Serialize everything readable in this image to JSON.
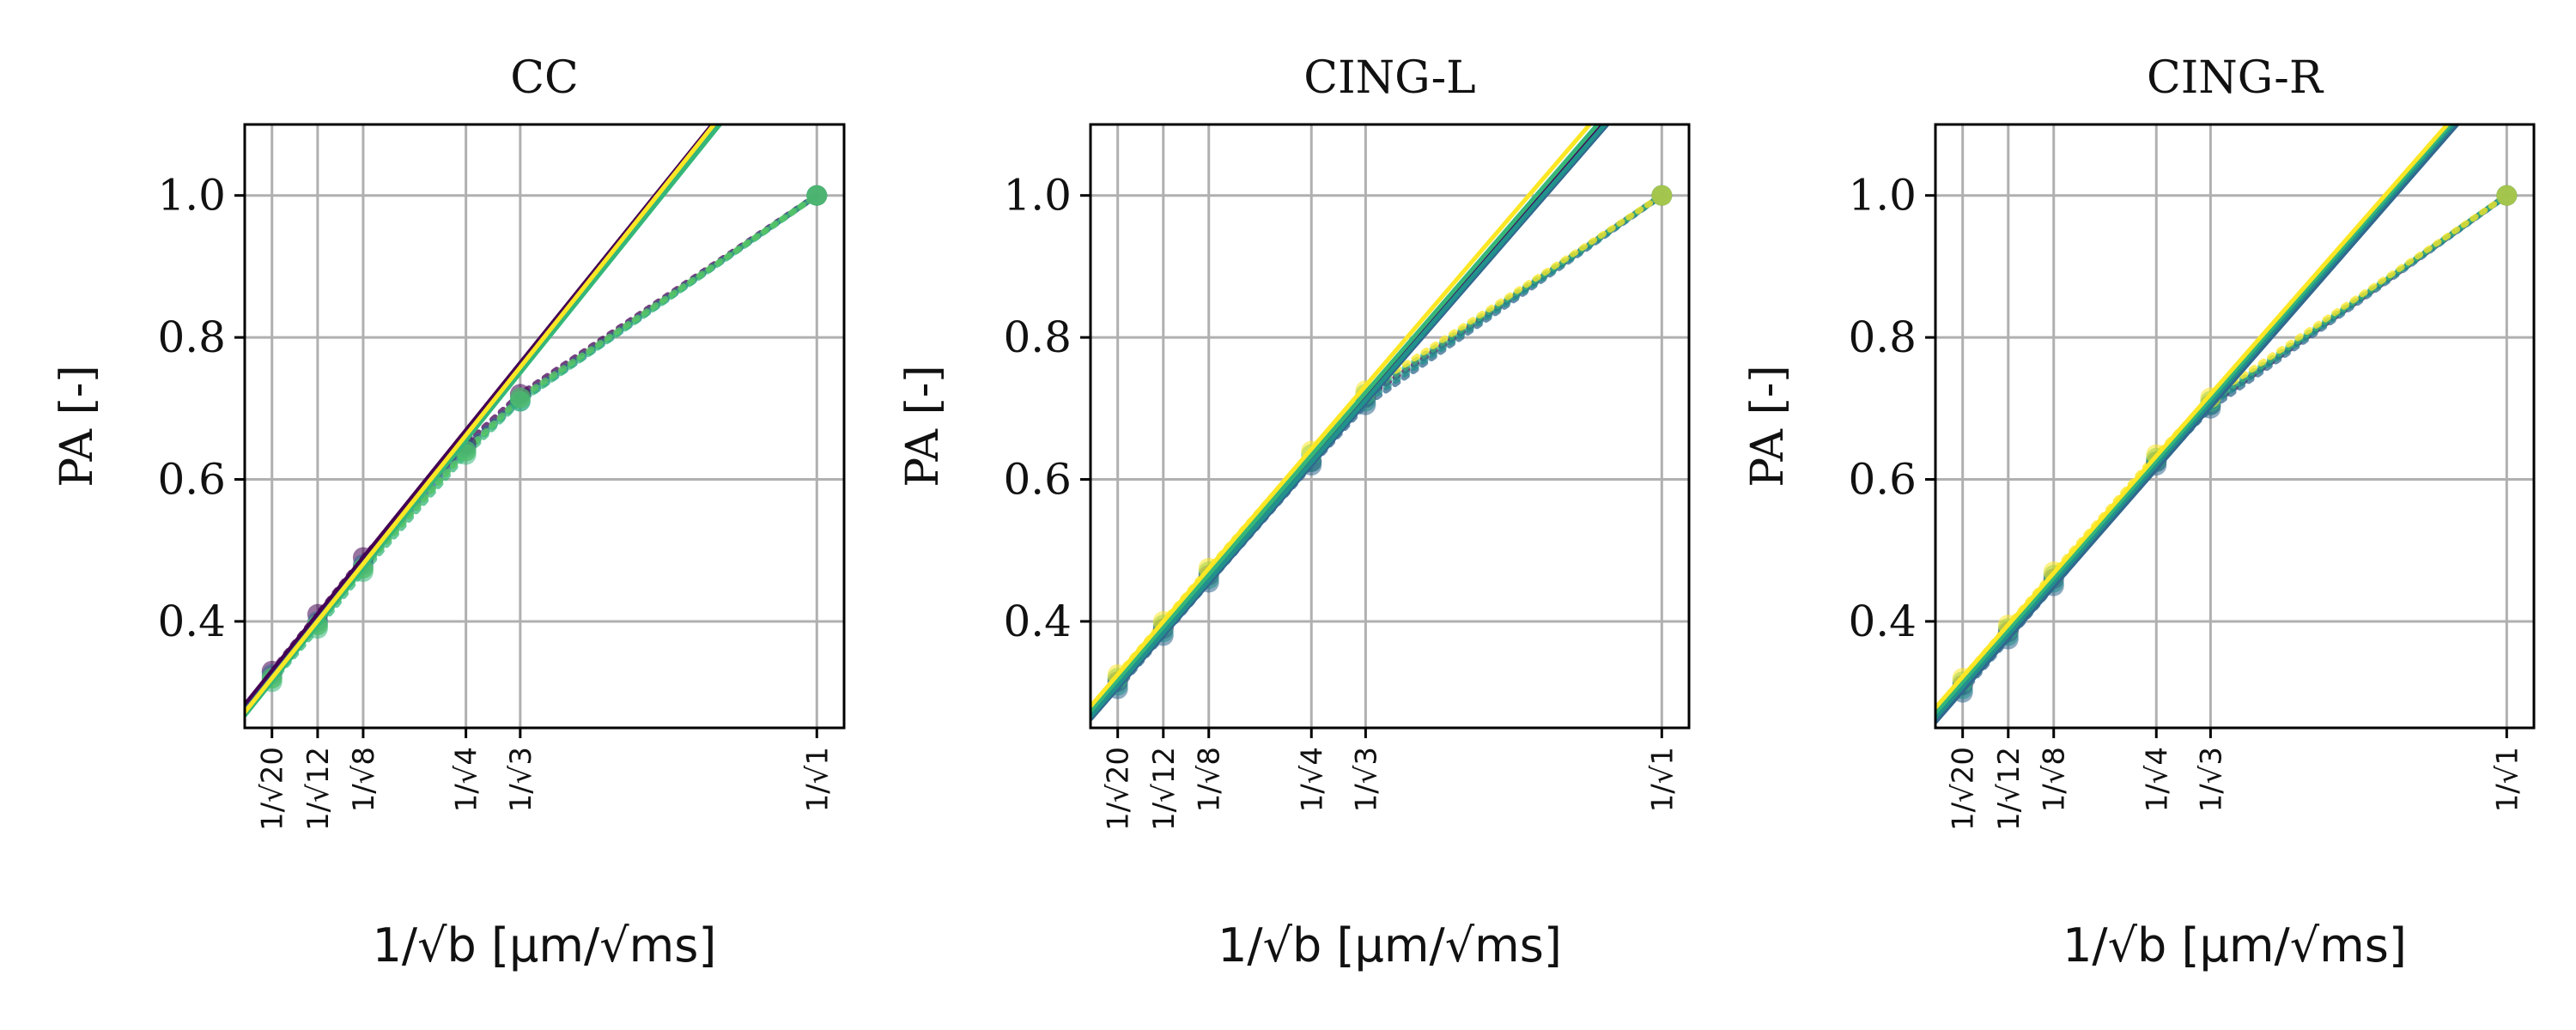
{
  "chart_data": [
    {
      "type": "line",
      "title": "CC",
      "ylabel": "PA [-]",
      "xlabel": "1/√b [μm/√ms]",
      "x_scale": "inverse-sqrt",
      "b_values": [
        20,
        12,
        8,
        4,
        3,
        1
      ],
      "xtick_labels": [
        "1/√20",
        "1/√12",
        "1/√8",
        "1/√4",
        "1/√3",
        "1/√1"
      ],
      "ylim": [
        0.25,
        1.1
      ],
      "yticks": [
        0.4,
        0.6,
        0.8,
        1.0
      ],
      "grid": true,
      "fit_lines": [
        {
          "color": "#440154",
          "points": [
            [
              20,
              0.33
            ],
            [
              3,
              0.764
            ]
          ]
        },
        {
          "color": "#31688e",
          "points": [
            [
              20,
              0.322
            ],
            [
              3,
              0.756
            ]
          ]
        },
        {
          "color": "#21918c",
          "points": [
            [
              20,
              0.318
            ],
            [
              3,
              0.753
            ]
          ]
        },
        {
          "color": "#35b779",
          "points": [
            [
              20,
              0.315
            ],
            [
              3,
              0.75
            ]
          ]
        },
        {
          "color": "#fde725",
          "points": [
            [
              20,
              0.32
            ],
            [
              3,
              0.758
            ]
          ]
        }
      ],
      "measured_series": [
        {
          "color": "#440154",
          "values": [
            0.33,
            0.41,
            0.49,
            0.65,
            0.72,
            1.0
          ]
        },
        {
          "color": "#31688e",
          "values": [
            0.325,
            0.4,
            0.48,
            0.645,
            0.715,
            1.0
          ]
        },
        {
          "color": "#21918c",
          "values": [
            0.32,
            0.395,
            0.475,
            0.64,
            0.71,
            1.0
          ]
        },
        {
          "color": "#35b779",
          "values": [
            0.315,
            0.39,
            0.47,
            0.635,
            0.71,
            1.0
          ]
        },
        {
          "color": "#5ec962",
          "values": [
            0.32,
            0.395,
            0.475,
            0.64,
            0.715,
            1.0
          ]
        }
      ]
    },
    {
      "type": "line",
      "title": "CING-L",
      "ylabel": "PA [-]",
      "xlabel": "1/√b [μm/√ms]",
      "x_scale": "inverse-sqrt",
      "b_values": [
        20,
        12,
        8,
        4,
        3,
        1
      ],
      "xtick_labels": [
        "1/√20",
        "1/√12",
        "1/√8",
        "1/√4",
        "1/√3",
        "1/√1"
      ],
      "ylim": [
        0.25,
        1.1
      ],
      "yticks": [
        0.4,
        0.6,
        0.8,
        1.0
      ],
      "grid": true,
      "fit_lines": [
        {
          "color": "#440154",
          "points": [
            [
              20,
              0.315
            ],
            [
              3,
              0.718
            ]
          ]
        },
        {
          "color": "#31688e",
          "points": [
            [
              20,
              0.306
            ],
            [
              3,
              0.708
            ]
          ]
        },
        {
          "color": "#21918c",
          "points": [
            [
              20,
              0.31
            ],
            [
              3,
              0.712
            ]
          ]
        },
        {
          "color": "#35b779",
          "points": [
            [
              20,
              0.318
            ],
            [
              3,
              0.722
            ]
          ]
        },
        {
          "color": "#fde725",
          "points": [
            [
              20,
              0.325
            ],
            [
              3,
              0.732
            ]
          ]
        }
      ],
      "measured_series": [
        {
          "color": "#440154",
          "values": [
            0.315,
            0.39,
            0.465,
            0.625,
            0.715,
            1.0
          ]
        },
        {
          "color": "#31688e",
          "values": [
            0.305,
            0.38,
            0.455,
            0.62,
            0.705,
            1.0
          ]
        },
        {
          "color": "#21918c",
          "values": [
            0.31,
            0.385,
            0.46,
            0.625,
            0.71,
            1.0
          ]
        },
        {
          "color": "#35b779",
          "values": [
            0.32,
            0.395,
            0.47,
            0.635,
            0.72,
            1.0
          ]
        },
        {
          "color": "#fde725",
          "values": [
            0.325,
            0.4,
            0.475,
            0.64,
            0.725,
            1.0
          ]
        }
      ]
    },
    {
      "type": "line",
      "title": "CING-R",
      "ylabel": "PA [-]",
      "xlabel": "1/√b [μm/√ms]",
      "x_scale": "inverse-sqrt",
      "b_values": [
        20,
        12,
        8,
        4,
        3,
        1
      ],
      "xtick_labels": [
        "1/√20",
        "1/√12",
        "1/√8",
        "1/√4",
        "1/√3",
        "1/√1"
      ],
      "ylim": [
        0.25,
        1.1
      ],
      "yticks": [
        0.4,
        0.6,
        0.8,
        1.0
      ],
      "grid": true,
      "fit_lines": [
        {
          "color": "#440154",
          "points": [
            [
              20,
              0.31
            ],
            [
              3,
              0.708
            ]
          ]
        },
        {
          "color": "#31688e",
          "points": [
            [
              20,
              0.302
            ],
            [
              3,
              0.702
            ]
          ]
        },
        {
          "color": "#21918c",
          "points": [
            [
              20,
              0.308
            ],
            [
              3,
              0.708
            ]
          ]
        },
        {
          "color": "#35b779",
          "points": [
            [
              20,
              0.315
            ],
            [
              3,
              0.714
            ]
          ]
        },
        {
          "color": "#fde725",
          "points": [
            [
              20,
              0.322
            ],
            [
              3,
              0.72
            ]
          ]
        }
      ],
      "measured_series": [
        {
          "color": "#440154",
          "values": [
            0.31,
            0.385,
            0.46,
            0.625,
            0.705,
            1.0
          ]
        },
        {
          "color": "#31688e",
          "values": [
            0.3,
            0.375,
            0.45,
            0.62,
            0.7,
            1.0
          ]
        },
        {
          "color": "#21918c",
          "values": [
            0.305,
            0.38,
            0.455,
            0.625,
            0.705,
            1.0
          ]
        },
        {
          "color": "#35b779",
          "values": [
            0.315,
            0.39,
            0.465,
            0.63,
            0.71,
            1.0
          ]
        },
        {
          "color": "#fde725",
          "values": [
            0.32,
            0.395,
            0.47,
            0.635,
            0.715,
            1.0
          ]
        }
      ]
    }
  ]
}
